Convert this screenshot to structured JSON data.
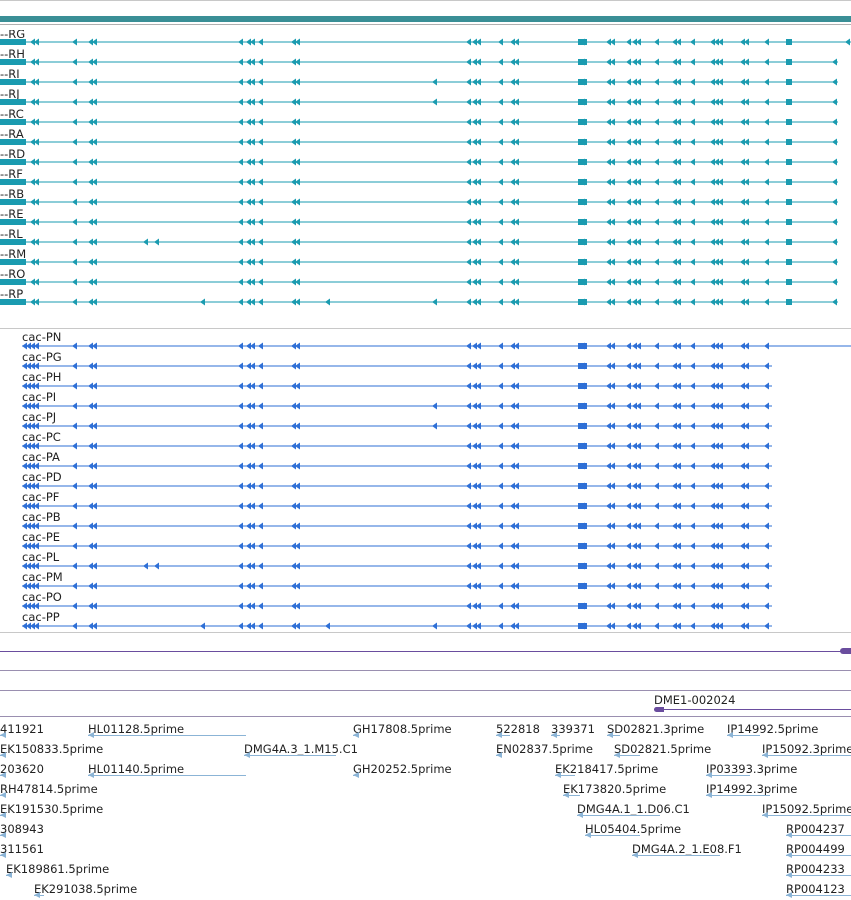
{
  "colors": {
    "transcript": "#1a9bb0",
    "transcript_bar": "#3a8fa0",
    "protein": "#2e6fd6",
    "purple": "#6a4d9e",
    "est": "#8bb4d6",
    "divider": "#9a8fb0"
  },
  "transcripts": {
    "labels": [
      "c-RG",
      "c-RH",
      "c-RI",
      "c-RJ",
      "c-RC",
      "c-RA",
      "c-RD",
      "c-RF",
      "c-RB",
      "c-RE",
      "c-RL",
      "c-RM",
      "c-RO",
      "c-RP"
    ],
    "label_prefix": ":-"
  },
  "proteins": {
    "labels": [
      "cac-PN",
      "cac-PG",
      "cac-PH",
      "cac-PI",
      "cac-PJ",
      "cac-PC",
      "cac-PA",
      "cac-PD",
      "cac-PF",
      "cac-PB",
      "cac-PE",
      "cac-PL",
      "cac-PM",
      "cac-PO",
      "cac-PP"
    ]
  },
  "misc_track": {
    "label": "DME1-002024"
  },
  "est_labels": [
    "411921",
    "HL01128.5prime",
    "GH17808.5prime",
    "522818",
    "339371",
    "SD02821.3prime",
    "IP14992.5prime",
    "EK150833.5prime",
    "DMG4A.3_1.M15.C1",
    "EN02837.5prime",
    "SD02821.5prime",
    "IP15092.3prime",
    "203620",
    "HL01140.5prime",
    "GH20252.5prime",
    "EK218417.5prime",
    "IP03393.3prime",
    "RH47814.5prime",
    "EK173820.5prime",
    "IP14992.3prime",
    "EK191530.5prime",
    "DMG4A.1_1.D06.C1",
    "IP15092.5prime",
    "308943",
    "HL05404.5prime",
    "RP004237",
    "311561",
    "DMG4A.2_1.E08.F1",
    "RP004499",
    "EK189861.5prime",
    "RP004233",
    "EK291038.5prime",
    "RP004123"
  ]
}
